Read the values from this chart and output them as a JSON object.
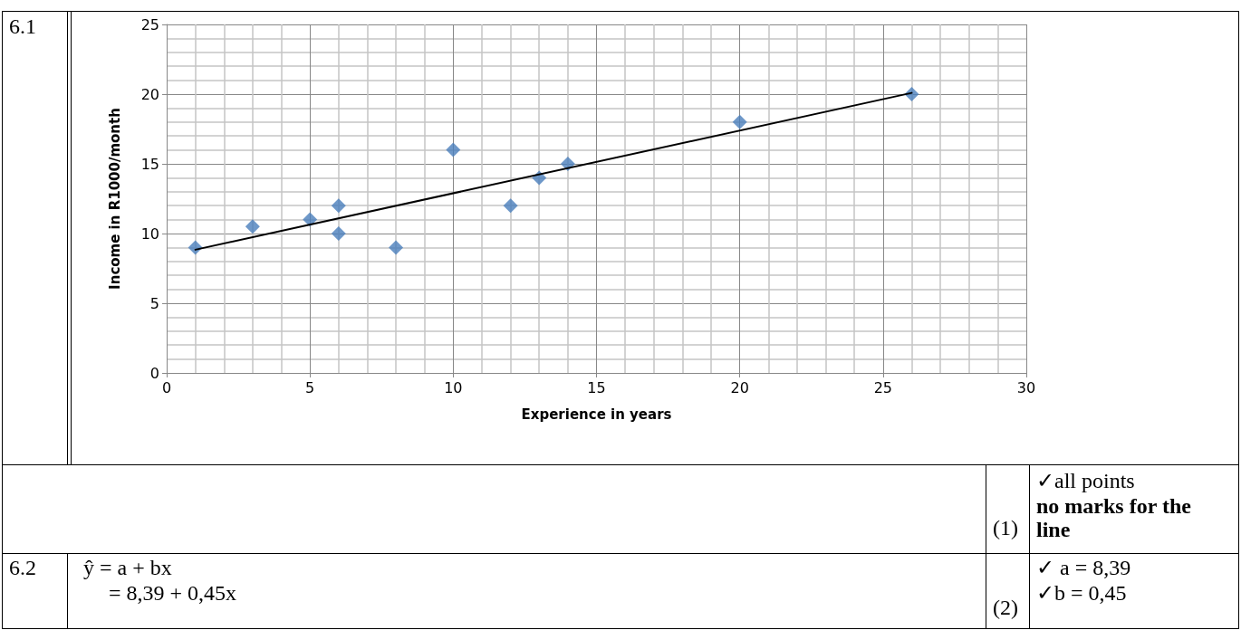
{
  "chart_data": {
    "type": "scatter",
    "xlabel": "Experience in years",
    "ylabel": "Income in R1000/month",
    "xlim": [
      0,
      30
    ],
    "xticks": [
      0,
      5,
      10,
      15,
      20,
      25,
      30
    ],
    "ylim": [
      0,
      25
    ],
    "yticks": [
      0,
      5,
      10,
      15,
      20,
      25
    ],
    "grid": true,
    "marker": "diamond",
    "series": [
      {
        "color": "#4a7ebb",
        "x": [
          1,
          3,
          5,
          6,
          6,
          8,
          10,
          12,
          13,
          14,
          20,
          26
        ],
        "values": [
          9,
          10.5,
          11,
          12,
          10,
          9,
          16,
          12,
          14,
          15,
          18,
          20
        ]
      },
      {
        "type": "line",
        "color": "#000000",
        "marker": "none",
        "line_style": "solid",
        "x": [
          1,
          26
        ],
        "values": [
          8.84,
          20.09
        ]
      }
    ],
    "annotations": [
      "6.1",
      "(1)",
      "✓all points",
      "no marks for the line",
      "6.2",
      "ŷ = a + bx",
      "= 8,39 + 0,45x",
      "(2)",
      "✓ a = 8,39",
      "✓b = 0,45"
    ]
  }
}
